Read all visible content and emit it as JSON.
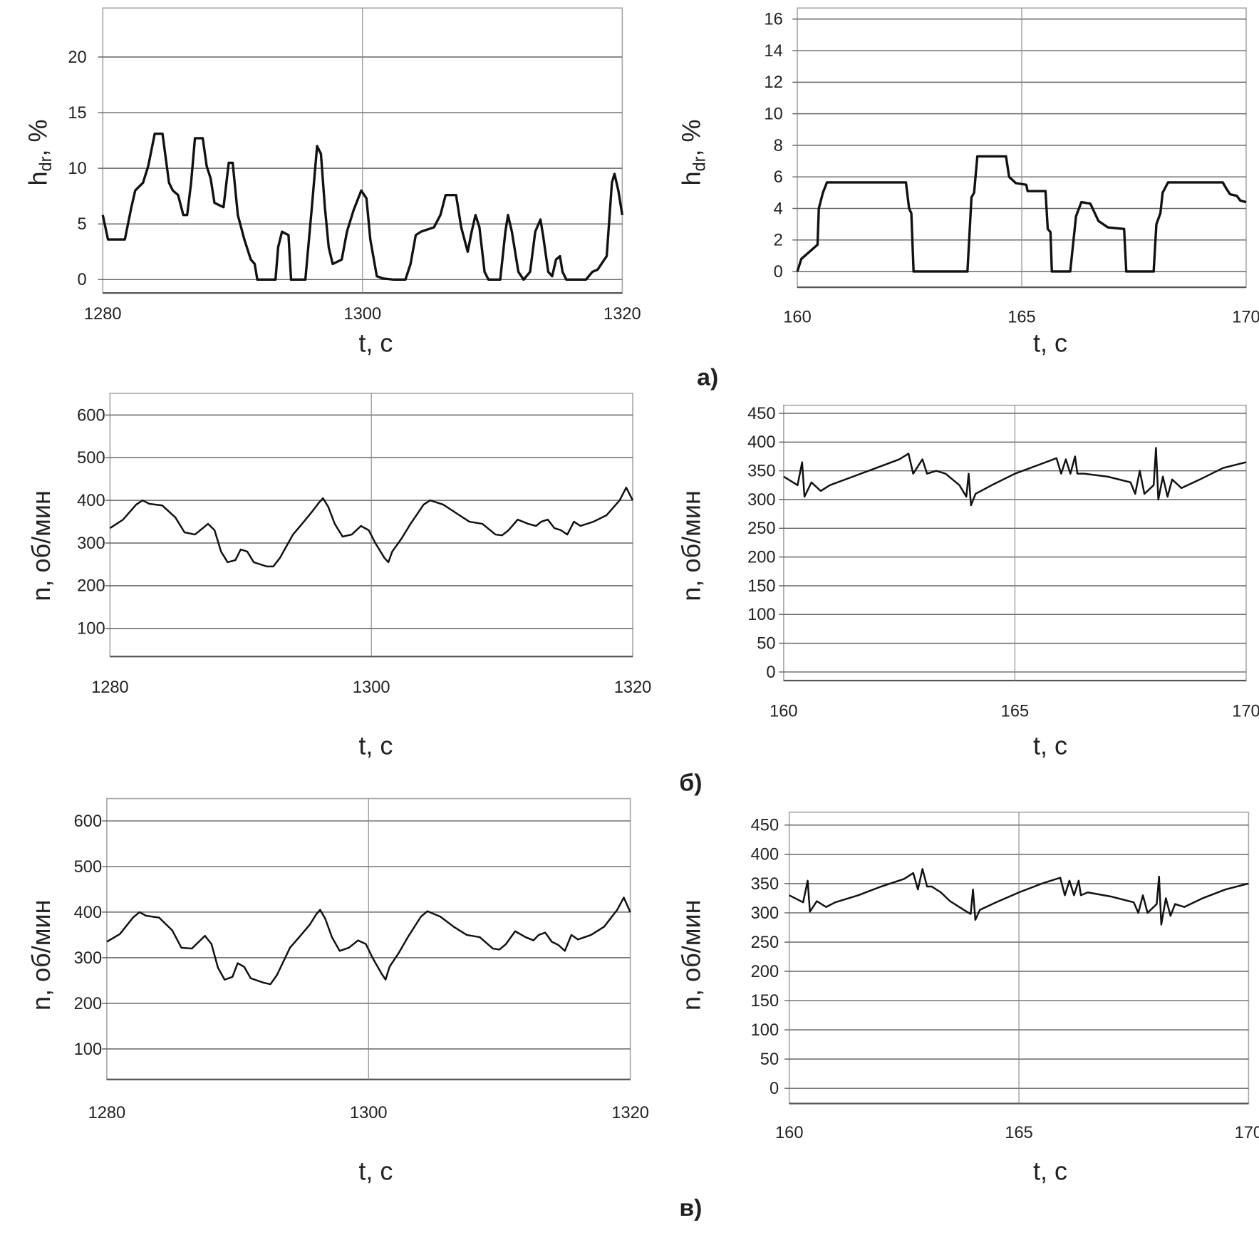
{
  "panel_labels": [
    "а)",
    "б)",
    "в)"
  ],
  "chart_data": [
    {
      "type": "line",
      "panel": "а)",
      "xlabel": "t, с",
      "ylabel": {
        "main": "h",
        "sub": "dr",
        "unit": ", %"
      },
      "xlim": [
        1280,
        1320
      ],
      "ylim": [
        -1.2,
        24.4
      ],
      "xticks": [
        1280,
        1300,
        1320
      ],
      "yticks": [
        0,
        5,
        10,
        15,
        20
      ],
      "grid": true,
      "x": [
        1280.0,
        1280.4,
        1281.7,
        1282.2,
        1282.5,
        1283.1,
        1283.5,
        1284.0,
        1284.6,
        1285.1,
        1285.4,
        1285.8,
        1286.2,
        1286.5,
        1286.8,
        1287.1,
        1287.7,
        1288.0,
        1288.3,
        1288.6,
        1289.3,
        1289.7,
        1290.0,
        1290.4,
        1290.9,
        1291.4,
        1291.7,
        1291.9,
        1293.3,
        1293.5,
        1293.8,
        1294.3,
        1294.5,
        1295.6,
        1296.1,
        1296.5,
        1296.8,
        1297.1,
        1297.4,
        1297.7,
        1298.4,
        1298.8,
        1299.3,
        1299.9,
        1300.3,
        1300.6,
        1301.1,
        1301.6,
        1302.4,
        1303.3,
        1303.7,
        1304.1,
        1304.5,
        1305.5,
        1306.0,
        1306.4,
        1307.2,
        1307.6,
        1308.1,
        1308.4,
        1308.7,
        1309.0,
        1309.4,
        1309.7,
        1310.6,
        1311.0,
        1311.2,
        1311.5,
        1312.0,
        1312.4,
        1312.9,
        1313.3,
        1313.7,
        1313.9,
        1314.3,
        1314.6,
        1314.9,
        1315.2,
        1315.4,
        1315.7,
        1317.2,
        1317.7,
        1318.1,
        1318.8,
        1319.2,
        1319.4,
        1319.7,
        1320.0
      ],
      "y": [
        5.8,
        3.6,
        3.6,
        6.5,
        8.0,
        8.7,
        10.2,
        13.1,
        13.1,
        8.7,
        8.0,
        7.6,
        5.8,
        5.8,
        8.7,
        12.7,
        12.7,
        10.2,
        9.1,
        6.9,
        6.5,
        10.5,
        10.5,
        5.8,
        3.6,
        1.8,
        1.4,
        0,
        0,
        2.9,
        4.3,
        4.0,
        0,
        0,
        6.5,
        12.0,
        11.3,
        6.5,
        2.9,
        1.4,
        1.8,
        4.3,
        6.2,
        8.0,
        7.3,
        3.6,
        0.3,
        0.1,
        0,
        0,
        1.4,
        4.0,
        4.3,
        4.7,
        5.8,
        7.6,
        7.6,
        4.7,
        2.5,
        4.3,
        5.8,
        4.7,
        0.7,
        0,
        0,
        4.3,
        5.8,
        4.3,
        0.7,
        0,
        0.7,
        4.3,
        5.4,
        4.0,
        0.7,
        0.3,
        1.8,
        2.1,
        0.7,
        0,
        0,
        0.7,
        0.9,
        2.1,
        8.7,
        9.5,
        8.0,
        5.8
      ]
    },
    {
      "type": "line",
      "panel": "а)",
      "xlabel": "t, с",
      "ylabel": {
        "main": "h",
        "sub": "dr",
        "unit": ", %"
      },
      "xlim": [
        160,
        170
      ],
      "ylim": [
        -1.0,
        16.7
      ],
      "xticks": [
        160,
        165,
        170
      ],
      "yticks": [
        0,
        2,
        4,
        6,
        8,
        10,
        12,
        14,
        16
      ],
      "grid": true,
      "x": [
        160.0,
        160.09,
        160.21,
        160.45,
        160.48,
        160.57,
        160.66,
        162.42,
        162.49,
        162.54,
        162.59,
        163.79,
        163.88,
        163.94,
        164.01,
        164.65,
        164.72,
        164.87,
        165.1,
        165.13,
        165.53,
        165.58,
        165.64,
        165.67,
        166.08,
        166.15,
        166.21,
        166.33,
        166.53,
        166.71,
        166.92,
        167.28,
        167.33,
        167.94,
        168.0,
        168.09,
        168.14,
        168.26,
        169.48,
        169.55,
        169.64,
        169.79,
        169.87,
        170.0
      ],
      "y": [
        0,
        0.8,
        1.1,
        1.7,
        4.0,
        5.0,
        5.65,
        5.65,
        4.0,
        3.7,
        0,
        0,
        4.7,
        5.0,
        7.3,
        7.3,
        6.0,
        5.6,
        5.5,
        5.1,
        5.1,
        2.7,
        2.5,
        0,
        0,
        1.9,
        3.5,
        4.4,
        4.3,
        3.2,
        2.8,
        2.7,
        0,
        0,
        3.0,
        3.7,
        5.0,
        5.65,
        5.65,
        5.3,
        4.9,
        4.8,
        4.5,
        4.4
      ]
    },
    {
      "type": "line",
      "panel": "б)",
      "xlabel": "t, с",
      "ylabel": {
        "main": "n, об/мин"
      },
      "xlim": [
        1280,
        1320
      ],
      "ylim": [
        34,
        651
      ],
      "xticks": [
        1280,
        1300,
        1320
      ],
      "yticks": [
        100,
        200,
        300,
        400,
        500,
        600
      ],
      "grid": true,
      "x": [
        1280,
        1281,
        1282,
        1282.5,
        1283,
        1284,
        1285,
        1285.7,
        1286.5,
        1287.5,
        1288,
        1288.5,
        1289,
        1289.6,
        1290,
        1290.5,
        1291,
        1292,
        1292.5,
        1293,
        1294,
        1294.7,
        1295.5,
        1296,
        1296.3,
        1296.7,
        1297.2,
        1297.8,
        1298.5,
        1299.2,
        1299.8,
        1300.3,
        1301,
        1301.3,
        1301.6,
        1302.3,
        1303,
        1304,
        1304.5,
        1305.5,
        1306.5,
        1307.5,
        1308.5,
        1309.5,
        1310,
        1310.5,
        1311.2,
        1312,
        1312.6,
        1313,
        1313.5,
        1314,
        1314.5,
        1315,
        1315.5,
        1316,
        1317,
        1318,
        1319,
        1319.5,
        1320
      ],
      "y": [
        335,
        355,
        390,
        400,
        392,
        388,
        360,
        325,
        320,
        345,
        330,
        280,
        255,
        260,
        285,
        280,
        255,
        245,
        245,
        265,
        320,
        345,
        375,
        395,
        405,
        385,
        345,
        315,
        320,
        340,
        330,
        300,
        265,
        255,
        280,
        310,
        345,
        390,
        400,
        390,
        370,
        350,
        345,
        320,
        318,
        330,
        355,
        345,
        340,
        350,
        355,
        335,
        330,
        320,
        350,
        340,
        350,
        365,
        400,
        430,
        400
      ]
    },
    {
      "type": "line",
      "panel": "б)",
      "xlabel": "t, с",
      "ylabel": {
        "main": "n, об/мин"
      },
      "xlim": [
        160,
        170
      ],
      "ylim": [
        -15,
        464
      ],
      "xticks": [
        160,
        165,
        170
      ],
      "yticks": [
        0,
        50,
        100,
        150,
        200,
        250,
        300,
        350,
        400,
        450
      ],
      "grid": true,
      "x": [
        160.0,
        160.3,
        160.4,
        160.45,
        160.6,
        160.8,
        161,
        161.5,
        162,
        162.5,
        162.7,
        162.8,
        163,
        163.1,
        163.3,
        163.5,
        163.8,
        163.95,
        164.0,
        164.05,
        164.15,
        164.5,
        165,
        165.5,
        165.9,
        166,
        166.1,
        166.2,
        166.3,
        166.35,
        166.5,
        167,
        167.5,
        167.6,
        167.7,
        167.8,
        168.0,
        168.05,
        168.1,
        168.2,
        168.3,
        168.4,
        168.6,
        169,
        169.5,
        170
      ],
      "y": [
        340,
        325,
        365,
        305,
        330,
        315,
        325,
        340,
        355,
        370,
        380,
        345,
        370,
        345,
        350,
        345,
        325,
        305,
        345,
        290,
        310,
        325,
        345,
        360,
        372,
        345,
        370,
        345,
        375,
        345,
        345,
        340,
        330,
        310,
        350,
        310,
        325,
        390,
        300,
        340,
        305,
        335,
        320,
        335,
        355,
        365
      ]
    },
    {
      "type": "line",
      "panel": "в)",
      "xlabel": "t, с",
      "ylabel": {
        "main": "n, об/мин"
      },
      "xlim": [
        1280,
        1320
      ],
      "ylim": [
        33,
        649
      ],
      "xticks": [
        1280,
        1300,
        1320
      ],
      "yticks": [
        100,
        200,
        300,
        400,
        500,
        600
      ],
      "grid": true,
      "x": [
        1280,
        1281,
        1282,
        1282.5,
        1283,
        1284,
        1285,
        1285.7,
        1286.5,
        1287.5,
        1288,
        1288.5,
        1289,
        1289.6,
        1290,
        1290.5,
        1291,
        1292,
        1292.5,
        1293,
        1294,
        1294.7,
        1295.5,
        1296,
        1296.3,
        1296.7,
        1297.2,
        1297.8,
        1298.5,
        1299.2,
        1299.8,
        1300.3,
        1301,
        1301.3,
        1301.6,
        1302.3,
        1303,
        1304,
        1304.5,
        1305.5,
        1306.5,
        1307.5,
        1308.5,
        1309.5,
        1310,
        1310.5,
        1311.2,
        1312,
        1312.6,
        1313,
        1313.5,
        1314,
        1314.5,
        1315,
        1315.5,
        1316,
        1317,
        1318,
        1319,
        1319.5,
        1320
      ],
      "y": [
        335,
        352,
        388,
        400,
        392,
        388,
        360,
        322,
        320,
        348,
        330,
        278,
        252,
        258,
        288,
        280,
        255,
        245,
        242,
        262,
        322,
        345,
        372,
        395,
        405,
        385,
        345,
        315,
        322,
        338,
        330,
        300,
        265,
        252,
        280,
        310,
        345,
        390,
        402,
        390,
        368,
        350,
        345,
        320,
        318,
        330,
        358,
        345,
        338,
        350,
        355,
        335,
        328,
        315,
        350,
        340,
        350,
        368,
        405,
        432,
        400
      ]
    },
    {
      "type": "line",
      "panel": "в)",
      "xlabel": "t, с",
      "ylabel": {
        "main": "n, об/мин"
      },
      "xlim": [
        160,
        170
      ],
      "ylim": [
        -26,
        472
      ],
      "xticks": [
        160,
        165,
        170
      ],
      "yticks": [
        0,
        50,
        100,
        150,
        200,
        250,
        300,
        350,
        400,
        450
      ],
      "grid": true,
      "x": [
        160.0,
        160.3,
        160.4,
        160.45,
        160.6,
        160.8,
        161,
        161.5,
        162,
        162.5,
        162.7,
        162.8,
        162.9,
        163,
        163.1,
        163.3,
        163.5,
        163.8,
        163.95,
        164.0,
        164.05,
        164.15,
        164.5,
        165,
        165.5,
        165.9,
        166,
        166.1,
        166.2,
        166.3,
        166.35,
        166.5,
        167,
        167.5,
        167.6,
        167.7,
        167.8,
        168.0,
        168.05,
        168.1,
        168.2,
        168.3,
        168.4,
        168.6,
        169,
        169.5,
        170
      ],
      "y": [
        330,
        318,
        355,
        302,
        320,
        310,
        318,
        330,
        345,
        358,
        368,
        340,
        375,
        345,
        345,
        335,
        320,
        305,
        298,
        340,
        288,
        305,
        318,
        335,
        350,
        360,
        330,
        355,
        330,
        355,
        330,
        335,
        328,
        318,
        300,
        330,
        300,
        315,
        362,
        280,
        325,
        295,
        315,
        310,
        325,
        340,
        350
      ]
    }
  ]
}
